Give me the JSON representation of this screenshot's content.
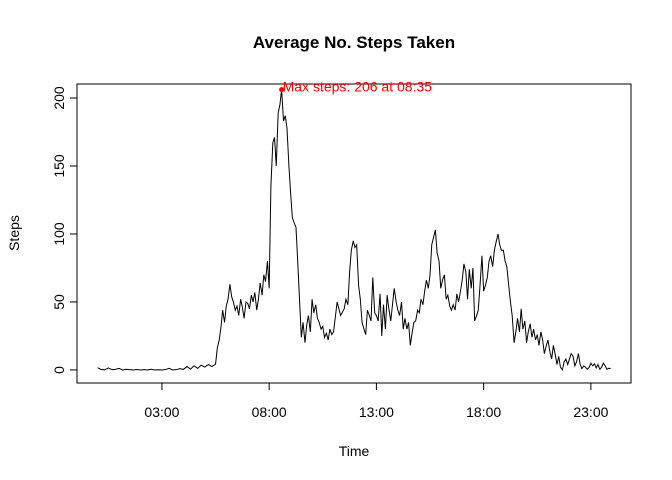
{
  "chart_data": {
    "type": "line",
    "title": "Average No. Steps Taken",
    "x_label": "Time",
    "y_label": "Steps",
    "color": "#000000",
    "x": [
      0,
      0.17,
      0.33,
      0.5,
      0.67,
      0.83,
      1,
      1.17,
      1.33,
      1.5,
      1.67,
      1.83,
      2,
      2.17,
      2.33,
      2.5,
      2.67,
      2.83,
      3,
      3.17,
      3.33,
      3.5,
      3.67,
      3.83,
      4,
      4.17,
      4.33,
      4.5,
      4.67,
      4.83,
      5,
      5.17,
      5.33,
      5.5,
      5.58,
      5.67,
      5.75,
      5.83,
      5.92,
      6,
      6.08,
      6.17,
      6.25,
      6.33,
      6.42,
      6.5,
      6.58,
      6.67,
      6.75,
      6.83,
      6.92,
      7,
      7.08,
      7.17,
      7.25,
      7.33,
      7.42,
      7.5,
      7.58,
      7.67,
      7.75,
      7.83,
      7.92,
      8,
      8.08,
      8.17,
      8.25,
      8.33,
      8.42,
      8.5,
      8.58,
      8.67,
      8.75,
      8.83,
      8.92,
      9,
      9.08,
      9.17,
      9.25,
      9.33,
      9.42,
      9.5,
      9.58,
      9.67,
      9.75,
      9.83,
      9.92,
      10,
      10.08,
      10.17,
      10.25,
      10.33,
      10.42,
      10.5,
      10.58,
      10.67,
      10.75,
      10.83,
      10.92,
      11,
      11.17,
      11.33,
      11.5,
      11.58,
      11.67,
      11.75,
      11.83,
      11.92,
      12,
      12.08,
      12.17,
      12.25,
      12.33,
      12.42,
      12.5,
      12.58,
      12.67,
      12.75,
      12.83,
      12.92,
      13,
      13.08,
      13.17,
      13.25,
      13.33,
      13.42,
      13.5,
      13.58,
      13.67,
      13.75,
      13.83,
      13.92,
      14,
      14.08,
      14.17,
      14.25,
      14.33,
      14.42,
      14.5,
      14.58,
      14.67,
      14.75,
      14.83,
      14.92,
      15,
      15.08,
      15.17,
      15.25,
      15.33,
      15.42,
      15.5,
      15.58,
      15.67,
      15.75,
      15.83,
      15.92,
      16,
      16.08,
      16.17,
      16.25,
      16.33,
      16.42,
      16.5,
      16.58,
      16.67,
      16.75,
      16.83,
      16.92,
      17,
      17.08,
      17.17,
      17.25,
      17.33,
      17.42,
      17.5,
      17.58,
      17.67,
      17.75,
      17.83,
      17.92,
      18,
      18.08,
      18.17,
      18.25,
      18.33,
      18.42,
      18.5,
      18.58,
      18.67,
      18.75,
      18.83,
      18.92,
      19,
      19.08,
      19.17,
      19.25,
      19.33,
      19.42,
      19.5,
      19.58,
      19.67,
      19.75,
      19.83,
      19.92,
      20,
      20.08,
      20.17,
      20.25,
      20.33,
      20.42,
      20.5,
      20.58,
      20.67,
      20.75,
      20.83,
      20.92,
      21,
      21.08,
      21.17,
      21.25,
      21.33,
      21.42,
      21.5,
      21.58,
      21.67,
      21.75,
      21.83,
      21.92,
      22,
      22.08,
      22.17,
      22.25,
      22.33,
      22.42,
      22.5,
      22.58,
      22.67,
      22.75,
      22.83,
      22.92,
      23,
      23.08,
      23.17,
      23.25,
      23.33,
      23.42,
      23.5,
      23.58,
      23.67,
      23.75,
      23.83,
      23.92
    ],
    "values": [
      1.7,
      0.3,
      0.1,
      1.5,
      0.2,
      0.4,
      1.1,
      0,
      0.5,
      0.2,
      0,
      0.3,
      0,
      0.2,
      0,
      0.5,
      0,
      0.1,
      0,
      0.3,
      1.2,
      0,
      0.2,
      1,
      0.4,
      2.5,
      0.6,
      3,
      1.2,
      3.5,
      2.1,
      4,
      2.5,
      4.2,
      16,
      22,
      31,
      44,
      35,
      47,
      52,
      63,
      54,
      50,
      44,
      47,
      40,
      52,
      46,
      38,
      50,
      49,
      45,
      55,
      50,
      57,
      44,
      52,
      64,
      55,
      70,
      65,
      80,
      60,
      135,
      167,
      171,
      150,
      189,
      195,
      206.17,
      183,
      187,
      178,
      150,
      130,
      112,
      108,
      105,
      80,
      50,
      24,
      35,
      20,
      33,
      40,
      28,
      52,
      42,
      48,
      38,
      35,
      30,
      32,
      24,
      27,
      22,
      30,
      26,
      28,
      50,
      40,
      45,
      52,
      48,
      72,
      88,
      95,
      90,
      92,
      62,
      52,
      35,
      30,
      26,
      44,
      40,
      36,
      68,
      42,
      40,
      36,
      56,
      25,
      48,
      30,
      55,
      45,
      36,
      48,
      60,
      50,
      44,
      40,
      50,
      30,
      38,
      30,
      35,
      18,
      28,
      35,
      36,
      44,
      42,
      52,
      48,
      58,
      66,
      60,
      70,
      92,
      98,
      103,
      86,
      80,
      60,
      66,
      70,
      52,
      55,
      47,
      44,
      48,
      44,
      56,
      50,
      58,
      66,
      78,
      72,
      52,
      74,
      60,
      75,
      36,
      40,
      44,
      62,
      84,
      58,
      62,
      68,
      80,
      84,
      76,
      88,
      94,
      100,
      92,
      88,
      88,
      80,
      76,
      62,
      50,
      40,
      20,
      28,
      38,
      28,
      45,
      30,
      36,
      20,
      28,
      34,
      24,
      30,
      22,
      26,
      18,
      28,
      22,
      12,
      18,
      22,
      14,
      8,
      18,
      12,
      4,
      10,
      2,
      0,
      6,
      8,
      4,
      8,
      12,
      10,
      3,
      6,
      12,
      4,
      1,
      3,
      2,
      0.5,
      2,
      5,
      3,
      4.5,
      1.5,
      4,
      0.5,
      2,
      5,
      3,
      0.5,
      1.2,
      1.1
    ],
    "xlim": [
      -0.96,
      24.87
    ],
    "ylim": [
      -9.6,
      210.3
    ],
    "xticks": [
      {
        "value": 3,
        "label": "03:00"
      },
      {
        "value": 8,
        "label": "08:00"
      },
      {
        "value": 13,
        "label": "13:00"
      },
      {
        "value": 18,
        "label": "18:00"
      },
      {
        "value": 23,
        "label": "23:00"
      }
    ],
    "yticks": [
      0,
      50,
      100,
      150,
      200
    ],
    "max_point": {
      "x": 8.58,
      "y": 206.17,
      "label": "Max steps: 206 at 08:35",
      "color": "#ff0000"
    }
  }
}
